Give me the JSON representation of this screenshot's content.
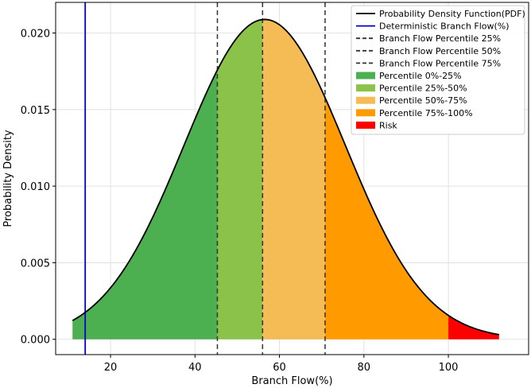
{
  "chart_data": {
    "type": "area",
    "xlabel": "Branch Flow(%)",
    "ylabel": "Probability Density",
    "xlim": [
      7,
      119
    ],
    "ylim": [
      -0.001,
      0.022
    ],
    "xticks": [
      20,
      40,
      60,
      80,
      100
    ],
    "xtick_labels": [
      "20",
      "40",
      "60",
      "80",
      "100"
    ],
    "yticks": [
      0.0,
      0.005,
      0.01,
      0.015,
      0.02
    ],
    "ytick_labels": [
      "0.000",
      "0.005",
      "0.010",
      "0.015",
      "0.020"
    ],
    "grid": true,
    "legend_position": "top-right",
    "distribution": {
      "kind": "normal",
      "mean": 56.5,
      "std": 19.1,
      "x_start": 11,
      "x_end": 112
    },
    "pdf_points": {
      "x": [
        11,
        15,
        20,
        25,
        30,
        35,
        40,
        45,
        50,
        55,
        56.5,
        60,
        65,
        70,
        75,
        80,
        85,
        90,
        95,
        100,
        105,
        112
      ],
      "y": [
        0.0012,
        0.00204,
        0.00335,
        0.00536,
        0.00791,
        0.01116,
        0.0146,
        0.01757,
        0.02003,
        0.02083,
        0.02089,
        0.02054,
        0.01888,
        0.01596,
        0.01306,
        0.0099,
        0.00687,
        0.00452,
        0.00278,
        0.00159,
        0.00085,
        0.0003
      ]
    },
    "deterministic_flow": 14,
    "percentile_lines": [
      {
        "name": "Branch Flow Percentile 25%",
        "x": 45.3
      },
      {
        "name": "Branch Flow Percentile 50%",
        "x": 56.0
      },
      {
        "name": "Branch Flow Percentile 75%",
        "x": 70.8
      }
    ],
    "bands": [
      {
        "name": "Percentile 0%-25%",
        "from": 11,
        "to": 45.3,
        "color": "#4caf50"
      },
      {
        "name": "Percentile 25%-50%",
        "from": 45.3,
        "to": 56.0,
        "color": "#8bc34a"
      },
      {
        "name": "Percentile 50%-75%",
        "from": 56.0,
        "to": 70.8,
        "color": "#f5bb55"
      },
      {
        "name": "Percentile 75%-100%",
        "from": 70.8,
        "to": 100,
        "color": "#ff9a00"
      },
      {
        "name": "Risk",
        "from": 100,
        "to": 112,
        "color": "#ff0000"
      }
    ],
    "legend": [
      {
        "label": "Probability Density Function(PDF)",
        "kind": "line",
        "color": "#000000",
        "dash": false
      },
      {
        "label": "Deterministic Branch Flow(%)",
        "kind": "line",
        "color": "#0000cc",
        "dash": false
      },
      {
        "label": "Branch Flow Percentile 25%",
        "kind": "line",
        "color": "#333333",
        "dash": true
      },
      {
        "label": "Branch Flow Percentile 50%",
        "kind": "line",
        "color": "#333333",
        "dash": true
      },
      {
        "label": "Branch Flow Percentile 75%",
        "kind": "line",
        "color": "#333333",
        "dash": true
      },
      {
        "label": "Percentile 0%-25%",
        "kind": "patch",
        "color": "#4caf50"
      },
      {
        "label": "Percentile 25%-50%",
        "kind": "patch",
        "color": "#8bc34a"
      },
      {
        "label": "Percentile 50%-75%",
        "kind": "patch",
        "color": "#f5bb55"
      },
      {
        "label": "Percentile 75%-100%",
        "kind": "patch",
        "color": "#ff9a00"
      },
      {
        "label": "Risk",
        "kind": "patch",
        "color": "#ff0000"
      }
    ]
  }
}
